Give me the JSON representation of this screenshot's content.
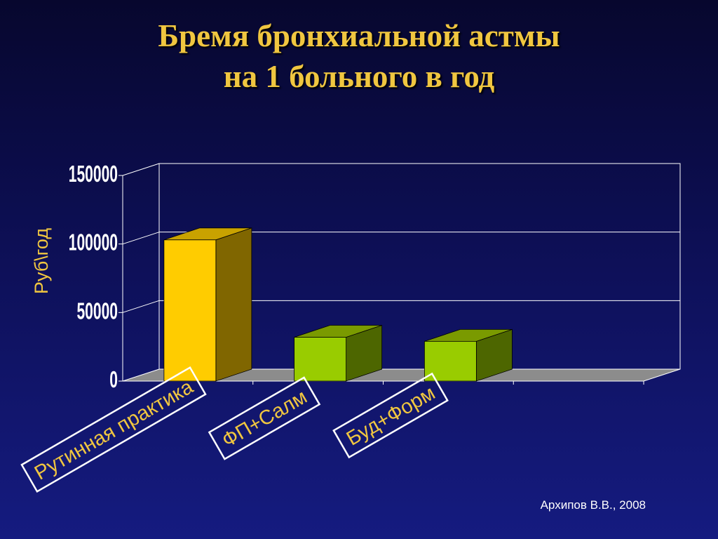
{
  "slide": {
    "title_line1": "Бремя бронхиальной астмы",
    "title_line2": "на 1 больного в год",
    "credit": "Архипов В.В., 2008"
  },
  "chart_data": {
    "type": "bar",
    "categories": [
      "Рутинная практика",
      "ФП+Салм",
      "Буд+Форм"
    ],
    "values": [
      103000,
      32000,
      29000
    ],
    "ylabel": "Руб\\год",
    "ylim": [
      0,
      150000
    ],
    "yticks": [
      "0",
      "50000",
      "100000",
      "150000"
    ],
    "grid": true,
    "colors": {
      "bar_front": [
        "#ffcc00",
        "#99cc00",
        "#99cc00"
      ],
      "bar_side": [
        "#806600",
        "#4d6600",
        "#4d6600"
      ],
      "bar_top": [
        "#c9a200",
        "#7a9a00",
        "#7a9a00"
      ],
      "floor": "#8c8c8c",
      "grid": "#ffffff",
      "axis_label": "#f0c640",
      "tick_label": "#ffffff"
    }
  }
}
